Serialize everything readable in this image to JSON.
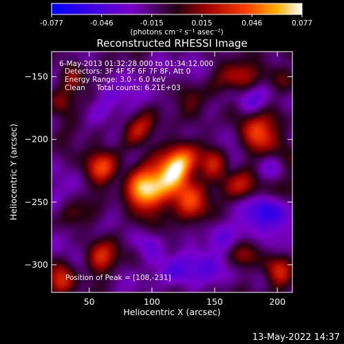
{
  "chart_data": {
    "type": "heatmap",
    "title": "Reconstructed RHESSI Image",
    "xlabel": "Heliocentric X (arcsec)",
    "ylabel": "Heliocentric Y (arcsec)",
    "xlim": [
      20,
      212
    ],
    "ylim": [
      -322,
      -130
    ],
    "xticks": [
      50,
      100,
      150,
      200
    ],
    "yticks": [
      -150,
      -200,
      -250,
      -300
    ],
    "colorbar": {
      "ticks": [
        "-0.077",
        "-0.046",
        "-0.015",
        "0.015",
        "0.046",
        "0.077"
      ],
      "range": [
        -0.077,
        0.077
      ],
      "units_label": "(photons cm⁻² s⁻¹ asec⁻²)"
    },
    "annotations": [
      "6-May-2013 01:32:28.000 to 01:34:12.000",
      "Detectors: 3F 4F 5F 6F 7F 8F, Att 0",
      "Energy Range: 3.0 - 6.0 keV",
      "Clean     Total counts: 6.21E+03"
    ],
    "peak_label": "Position of Peak = [108,-231]",
    "peak": {
      "x": 108,
      "y": -231,
      "value": 0.077
    },
    "sources": [
      {
        "x": 108,
        "y": -231,
        "sigma": 14,
        "value": 0.075
      },
      {
        "x": 125,
        "y": -220,
        "sigma": 10,
        "value": 0.055
      },
      {
        "x": 90,
        "y": -244,
        "sigma": 10,
        "value": 0.06
      },
      {
        "x": 60,
        "y": -222,
        "sigma": 9,
        "value": 0.055
      },
      {
        "x": 150,
        "y": -218,
        "sigma": 9,
        "value": 0.04
      },
      {
        "x": 130,
        "y": -254,
        "sigma": 10,
        "value": 0.045
      },
      {
        "x": 185,
        "y": -195,
        "sigma": 11,
        "value": 0.06
      },
      {
        "x": 172,
        "y": -238,
        "sigma": 9,
        "value": 0.035
      },
      {
        "x": 130,
        "y": -165,
        "sigma": 9,
        "value": 0.04
      },
      {
        "x": 92,
        "y": -192,
        "sigma": 9,
        "value": 0.04
      },
      {
        "x": 168,
        "y": -150,
        "sigma": 9,
        "value": 0.035
      },
      {
        "x": 30,
        "y": -170,
        "sigma": 9,
        "value": 0.045
      },
      {
        "x": 38,
        "y": -150,
        "sigma": 8,
        "value": 0.035
      },
      {
        "x": 200,
        "y": -150,
        "sigma": 9,
        "value": 0.035
      },
      {
        "x": 60,
        "y": -295,
        "sigma": 10,
        "value": 0.05
      },
      {
        "x": 28,
        "y": -315,
        "sigma": 9,
        "value": 0.045
      },
      {
        "x": 200,
        "y": -305,
        "sigma": 9,
        "value": 0.04
      },
      {
        "x": 170,
        "y": -290,
        "sigma": 8,
        "value": 0.03
      },
      {
        "x": 35,
        "y": -260,
        "sigma": 8,
        "value": 0.03
      },
      {
        "x": 120,
        "y": -305,
        "sigma": 9,
        "value": -0.03
      },
      {
        "x": 150,
        "y": -300,
        "sigma": 10,
        "value": -0.025
      },
      {
        "x": 60,
        "y": -180,
        "sigma": 8,
        "value": -0.02
      },
      {
        "x": 195,
        "y": -260,
        "sigma": 10,
        "value": -0.03
      }
    ]
  },
  "footer": {
    "timestamp": "13-May-2022 14:37"
  }
}
